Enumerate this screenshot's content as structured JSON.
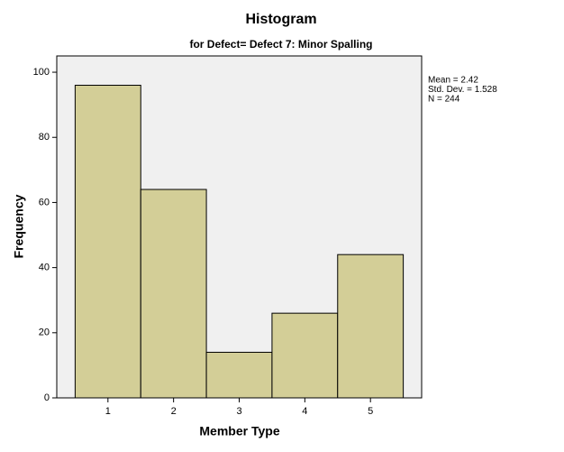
{
  "chart_data": {
    "type": "histogram",
    "title": "Histogram",
    "subtitle": "for Defect= Defect 7: Minor Spalling",
    "x_label": "Member Type",
    "y_label": "Frequency",
    "bins": [
      0.5,
      1.5,
      2.5,
      3.5,
      4.5,
      5.5
    ],
    "counts": [
      96,
      64,
      14,
      26,
      44
    ],
    "color": "#d3ce97",
    "edge_color": "#000000",
    "background": "#f0f0f0",
    "xlim": [
      0.22,
      5.78
    ],
    "ylim": [
      0,
      105
    ],
    "xticks": [
      1,
      2,
      3,
      4,
      5
    ],
    "yticks": [
      0,
      20,
      40,
      60,
      80,
      100
    ],
    "grid": false,
    "annotations": [
      "Mean = 2.42",
      "Std. Dev. = 1.528",
      "N = 244"
    ]
  }
}
